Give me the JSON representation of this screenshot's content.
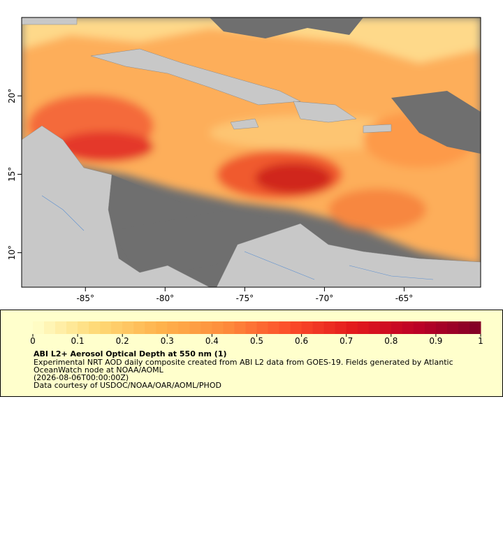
{
  "map": {
    "lon_range": [
      -89,
      -60.2
    ],
    "lat_range": [
      7.8,
      25
    ],
    "xticks": [
      {
        "value": -85,
        "label": "-85°"
      },
      {
        "value": -80,
        "label": "-80°"
      },
      {
        "value": -75,
        "label": "-75°"
      },
      {
        "value": -70,
        "label": "-70°"
      },
      {
        "value": -65,
        "label": "-65°"
      }
    ],
    "yticks": [
      {
        "value": 10,
        "label": "10°"
      },
      {
        "value": 15,
        "label": "15°"
      },
      {
        "value": 20,
        "label": "20°"
      }
    ]
  },
  "legend": {
    "colorbar": {
      "range": [
        0,
        1
      ],
      "ticks": [
        0,
        0.1,
        0.2,
        0.3,
        0.4,
        0.5,
        0.6,
        0.7,
        0.8,
        0.9,
        1
      ],
      "colors": [
        "#ffffcc",
        "#fed976",
        "#feb24c",
        "#fd8d3c",
        "#fc4e2a",
        "#e31a1c",
        "#bd0026",
        "#800026"
      ]
    },
    "title": "ABI L2+ Aerosol Optical Depth at 550 nm (1)",
    "lines": [
      "Experimental NRT AOD daily composite created from ABI L2 data from GOES-19. Fields generated by Atlantic",
      "OceanWatch node at NOAA/AOML",
      "(2026-08-06T00:00:00Z)",
      "Data courtesy of USDOC/NOAA/OAR/AOML/PHOD"
    ]
  }
}
